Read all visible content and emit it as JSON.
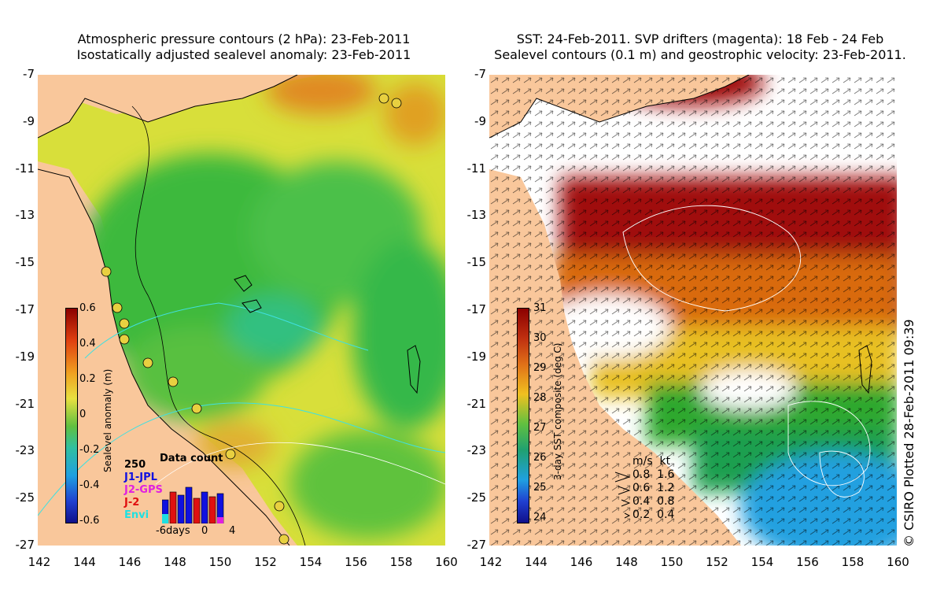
{
  "left_panel": {
    "title_line1": "Atmospheric pressure contours (2 hPa): 23-Feb-2011",
    "title_line2": "Isostatically adjusted sealevel anomaly: 23-Feb-2011",
    "colorbar_label": "Sealevel anomaly (m)",
    "colorbar_ticks": [
      "0.6",
      "0.4",
      "0.2",
      "0",
      "-0.2",
      "-0.4",
      "-0.6"
    ],
    "inset": {
      "title": "Data count",
      "max_label": "250",
      "series": [
        {
          "name": "J1-JPL",
          "color": "#1010e0"
        },
        {
          "name": "J2-GPS",
          "color": "#e020e0"
        },
        {
          "name": "J-2",
          "color": "#e01010"
        },
        {
          "name": "Envi",
          "color": "#20e0e0"
        }
      ],
      "x_ticks": [
        "-6days",
        "0",
        "4"
      ]
    }
  },
  "right_panel": {
    "title_line1": "SST: 24-Feb-2011. SVP drifters (magenta): 18 Feb - 24 Feb",
    "title_line2": "Sealevel contours (0.1 m) and geostrophic velocity: 23-Feb-2011.",
    "colorbar_label": "3-day SST composite (deg C)",
    "colorbar_ticks": [
      "31",
      "30",
      "29",
      "28",
      "27",
      "26",
      "25",
      "24"
    ],
    "velocity_legend": {
      "header": "m/s  kt",
      "rows": [
        "0.8  1.6",
        "0.6  1.2",
        "0.4  0.8",
        "0.2  0.4"
      ]
    },
    "credit": "© CSIRO Plotted 28-Feb-2011 09:39"
  },
  "axes": {
    "y_ticks": [
      "-7",
      "-9",
      "-11",
      "-13",
      "-15",
      "-17",
      "-19",
      "-21",
      "-23",
      "-25",
      "-27"
    ],
    "x_ticks": [
      "142",
      "144",
      "146",
      "148",
      "150",
      "152",
      "154",
      "156",
      "158",
      "160"
    ]
  },
  "colors": {
    "land": "#f9c79b",
    "sea_green": "#3cb93c",
    "sea_yellow": "#dfe23c",
    "sst_red": "#a01010",
    "sst_orange": "#d96a10"
  }
}
